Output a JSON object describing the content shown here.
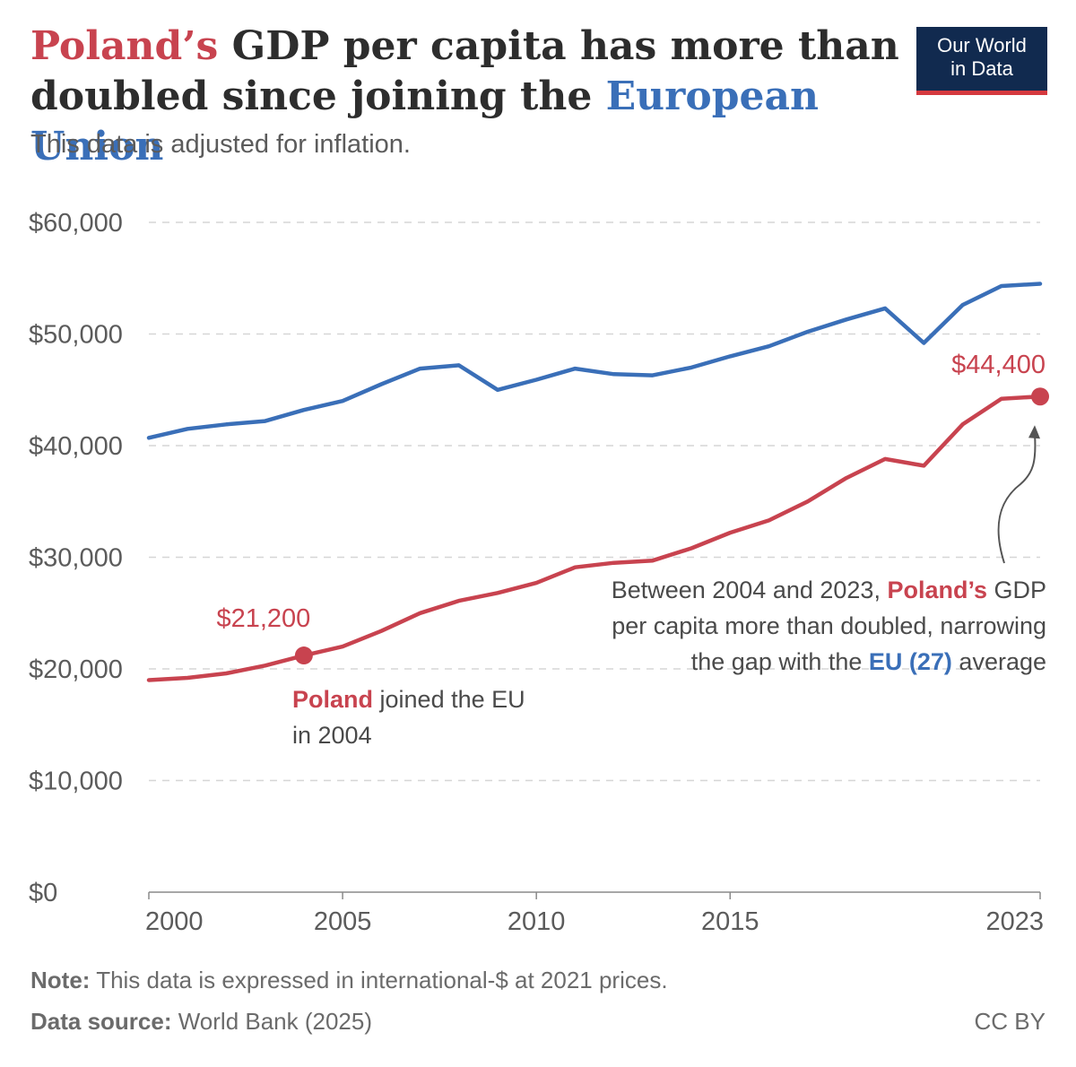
{
  "title": {
    "part1": "Poland’s",
    "part2": " GDP per capita has more than doubled since joining the ",
    "part3": "European Union"
  },
  "subtitle": "This data is adjusted for inflation.",
  "logo": {
    "line1": "Our World",
    "line2": "in Data"
  },
  "colors": {
    "poland": "#c8434f",
    "eu": "#3a6fb8",
    "logo_bg": "#112a4f",
    "logo_accent": "#d5393f"
  },
  "annotations": {
    "poland_join": {
      "name": "Poland",
      "text": " joined the EU in 2004"
    },
    "summary": {
      "text1": "Between 2004 and 2023, ",
      "poland": "Poland’s",
      "text2": " GDP per capita more than doubled, narrowing the gap with the ",
      "eu": "EU (27)",
      "text3": " average"
    }
  },
  "chart_data": {
    "type": "line",
    "ylim": [
      0,
      60000
    ],
    "xlim": [
      2000,
      2023
    ],
    "y_ticks": [
      0,
      10000,
      20000,
      30000,
      40000,
      50000,
      60000
    ],
    "y_tick_labels": [
      "$0",
      "$10,000",
      "$20,000",
      "$30,000",
      "$40,000",
      "$50,000",
      "$60,000"
    ],
    "x_ticks": [
      2000,
      2005,
      2010,
      2015,
      2023
    ],
    "x_tick_labels": [
      "2000",
      "2005",
      "2010",
      "2015",
      "2023"
    ],
    "grid": "horizontal dashed",
    "x": [
      2000,
      2001,
      2002,
      2003,
      2004,
      2005,
      2006,
      2007,
      2008,
      2009,
      2010,
      2011,
      2012,
      2013,
      2014,
      2015,
      2016,
      2017,
      2018,
      2019,
      2020,
      2021,
      2022,
      2023
    ],
    "series": [
      {
        "key": "eu",
        "values": [
          40700,
          41500,
          41900,
          42200,
          43200,
          44000,
          45500,
          46900,
          47200,
          45000,
          45900,
          46900,
          46400,
          46300,
          47000,
          48000,
          48900,
          50200,
          51300,
          52300,
          49200,
          52600,
          54300,
          54500
        ]
      },
      {
        "key": "poland",
        "values": [
          19000,
          19200,
          19600,
          20300,
          21200,
          22000,
          23400,
          25000,
          26100,
          26800,
          27700,
          29100,
          29500,
          29700,
          30800,
          32200,
          33300,
          35000,
          37100,
          38800,
          38200,
          41900,
          44200,
          44400
        ]
      }
    ],
    "data_labels": [
      {
        "x": 2004,
        "series": "poland",
        "label": "$21,200"
      },
      {
        "x": 2023,
        "series": "poland",
        "label": "$44,400"
      }
    ]
  },
  "footer": {
    "note_label": "Note:",
    "note_text": " This data is expressed in international-$ at 2021 prices.",
    "source_label": "Data source:",
    "source_text": " World Bank (2025)",
    "license": "CC BY"
  }
}
